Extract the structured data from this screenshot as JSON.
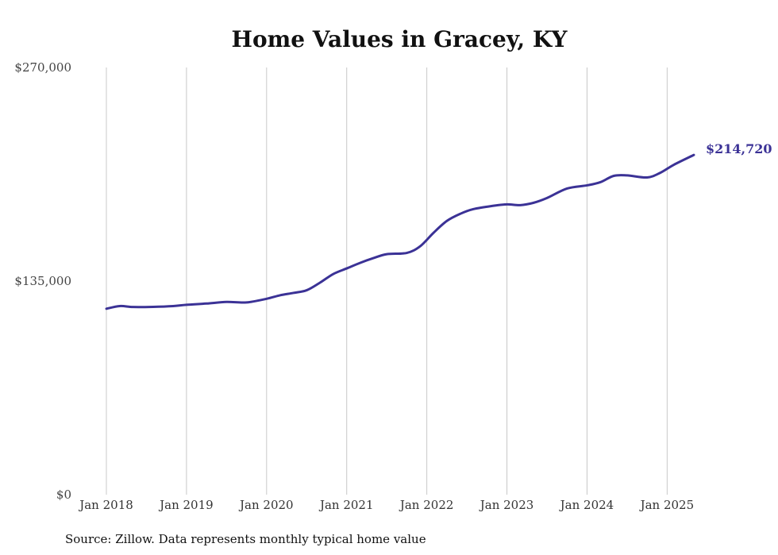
{
  "chart_data": {
    "type": "line",
    "title": "Home Values in Gracey, KY",
    "xlabel": "",
    "ylabel": "",
    "source": "Source: Zillow. Data represents monthly typical home value",
    "ylim": [
      0,
      270000
    ],
    "yticks": [
      {
        "value": 0,
        "label": "$0"
      },
      {
        "value": 135000,
        "label": "$135,000"
      },
      {
        "value": 270000,
        "label": "$270,000"
      }
    ],
    "xlim": [
      "2018-01",
      "2025-05"
    ],
    "xticks": [
      {
        "value": "2018-01",
        "label": "Jan 2018"
      },
      {
        "value": "2019-01",
        "label": "Jan 2019"
      },
      {
        "value": "2020-01",
        "label": "Jan 2020"
      },
      {
        "value": "2021-01",
        "label": "Jan 2021"
      },
      {
        "value": "2022-01",
        "label": "Jan 2022"
      },
      {
        "value": "2023-01",
        "label": "Jan 2023"
      },
      {
        "value": "2024-01",
        "label": "Jan 2024"
      },
      {
        "value": "2025-01",
        "label": "Jan 2025"
      }
    ],
    "grid": {
      "x": true,
      "y": false
    },
    "line_color": "#3b3296",
    "end_label": "$214,720",
    "series": [
      {
        "values": [
          {
            "x": "2018-01",
            "y": 117500
          },
          {
            "x": "2018-03",
            "y": 119200
          },
          {
            "x": "2018-05",
            "y": 118600
          },
          {
            "x": "2018-08",
            "y": 118700
          },
          {
            "x": "2018-11",
            "y": 119200
          },
          {
            "x": "2019-01",
            "y": 120000
          },
          {
            "x": "2019-04",
            "y": 120800
          },
          {
            "x": "2019-07",
            "y": 121800
          },
          {
            "x": "2019-10",
            "y": 121500
          },
          {
            "x": "2020-01",
            "y": 123800
          },
          {
            "x": "2020-03",
            "y": 126000
          },
          {
            "x": "2020-05",
            "y": 127500
          },
          {
            "x": "2020-07",
            "y": 129200
          },
          {
            "x": "2020-09",
            "y": 134000
          },
          {
            "x": "2020-11",
            "y": 139500
          },
          {
            "x": "2021-01",
            "y": 143000
          },
          {
            "x": "2021-03",
            "y": 146500
          },
          {
            "x": "2021-05",
            "y": 149500
          },
          {
            "x": "2021-07",
            "y": 152000
          },
          {
            "x": "2021-10",
            "y": 152800
          },
          {
            "x": "2021-12",
            "y": 157000
          },
          {
            "x": "2022-02",
            "y": 165500
          },
          {
            "x": "2022-04",
            "y": 173000
          },
          {
            "x": "2022-06",
            "y": 177500
          },
          {
            "x": "2022-08",
            "y": 180500
          },
          {
            "x": "2022-11",
            "y": 182600
          },
          {
            "x": "2023-01",
            "y": 183500
          },
          {
            "x": "2023-03",
            "y": 183000
          },
          {
            "x": "2023-05",
            "y": 184500
          },
          {
            "x": "2023-07",
            "y": 187500
          },
          {
            "x": "2023-10",
            "y": 193500
          },
          {
            "x": "2024-01",
            "y": 195500
          },
          {
            "x": "2024-03",
            "y": 197500
          },
          {
            "x": "2024-05",
            "y": 201500
          },
          {
            "x": "2024-07",
            "y": 201800
          },
          {
            "x": "2024-10",
            "y": 200500
          },
          {
            "x": "2024-12",
            "y": 203500
          },
          {
            "x": "2025-02",
            "y": 208500
          },
          {
            "x": "2025-05",
            "y": 214720
          }
        ]
      }
    ]
  }
}
